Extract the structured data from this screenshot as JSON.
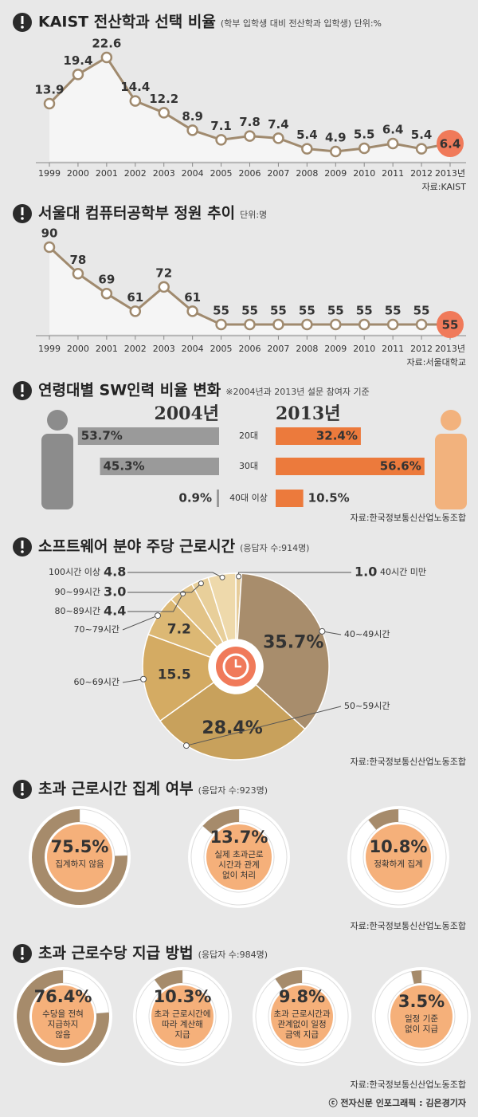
{
  "chart_data": [
    {
      "type": "line",
      "title": "KAIST 전산학과 선택 비율",
      "subtitle": "(학부 입학생 대비 전산학과 입학생) 단위:%",
      "categories": [
        "1999",
        "2000",
        "2001",
        "2002",
        "2003",
        "2004",
        "2005",
        "2006",
        "2007",
        "2008",
        "2009",
        "2010",
        "2011",
        "2012",
        "2013년"
      ],
      "values": [
        13.9,
        19.4,
        22.6,
        14.4,
        12.2,
        8.9,
        7.1,
        7.8,
        7.4,
        5.4,
        4.9,
        5.5,
        6.4,
        5.4,
        6.4
      ],
      "color": "#a08a6e",
      "highlight_color": "#f07a5a",
      "source": "자료:KAIST"
    },
    {
      "type": "line",
      "title": "서울대 컴퓨터공학부 정원 추이",
      "subtitle": "단위:명",
      "categories": [
        "1999",
        "2000",
        "2001",
        "2002",
        "2003",
        "2004",
        "2005",
        "2006",
        "2007",
        "2008",
        "2009",
        "2010",
        "2011",
        "2012",
        "2013년"
      ],
      "values": [
        90,
        78,
        69,
        61,
        72,
        61,
        55,
        55,
        55,
        55,
        55,
        55,
        55,
        55,
        55
      ],
      "color": "#a08a6e",
      "highlight_color": "#f07a5a",
      "source": "자료:서울대학교"
    },
    {
      "type": "hbar_pair",
      "title": "연령대별 SW인력 비율 변화",
      "subtitle": "※2004년과 2013년 설문 참여자 기준",
      "categories": [
        "20대",
        "30대",
        "40대 이상"
      ],
      "series": [
        {
          "name": "2004년",
          "color": "#9a9a9a",
          "values": [
            53.7,
            45.3,
            0.9
          ],
          "value_labels": [
            "53.7%",
            "45.3%",
            "0.9%"
          ]
        },
        {
          "name": "2013년",
          "color": "#ec7a3c",
          "values": [
            32.4,
            56.6,
            10.5
          ],
          "value_labels": [
            "32.4%",
            "56.6%",
            "10.5%"
          ]
        }
      ],
      "source": "자료:한국정보통신산업노동조합"
    },
    {
      "type": "donut",
      "title": "소프트웨어 분야 주당 근로시간",
      "subtitle": "(응답자 수:914명)",
      "categories": [
        "40시간 미만",
        "40~49시간",
        "50~59시간",
        "60~69시간",
        "70~79시간",
        "80~89시간",
        "90~99시간",
        "100시간 이상"
      ],
      "values": [
        1.0,
        35.7,
        28.4,
        15.5,
        7.2,
        4.4,
        3.0,
        4.8
      ],
      "value_labels": [
        "1.0",
        "35.7%",
        "28.4%",
        "15.5",
        "7.2",
        "4.4",
        "3.0",
        "4.8"
      ],
      "colors": [
        "#e6cc9a",
        "#a88d6c",
        "#c8a15c",
        "#d4ab63",
        "#dcb874",
        "#e2c387",
        "#e8cf9a",
        "#eed9ab"
      ],
      "source": "자료:한국정보통신산업노동조합"
    },
    {
      "type": "rings",
      "title": "초과 근로시간 집계 여부",
      "subtitle": "(응답자 수:923명)",
      "categories": [
        [
          "집계하지 않음"
        ],
        [
          "실제 초과근로",
          "시간과 관계",
          "없이 처리"
        ],
        [
          "정확하게 집계"
        ]
      ],
      "values": [
        75.5,
        13.7,
        10.8
      ],
      "value_labels": [
        "75.5%",
        "13.7%",
        "10.8%"
      ],
      "color": "#a68b6b",
      "source": "자료:한국정보통신산업노동조합"
    },
    {
      "type": "rings",
      "title": "초과 근로수당 지급 방법",
      "subtitle": "(응답자 수:984명)",
      "categories": [
        [
          "수당을 전혀",
          "지급하지",
          "않음"
        ],
        [
          "초과 근로시간에",
          "따라 계산해",
          "지급"
        ],
        [
          "초과 근로시간과",
          "관계없이 일정",
          "금액 지급"
        ],
        [
          "일정 기준",
          "없이 지급"
        ]
      ],
      "values": [
        76.4,
        10.3,
        9.8,
        3.5
      ],
      "value_labels": [
        "76.4%",
        "10.3%",
        "9.8%",
        "3.5%"
      ],
      "color": "#a68b6b",
      "source": "자료:한국정보통신산업노동조합"
    }
  ],
  "credit": "ⓒ 전자신문 인포그래픽 : 김은경기자"
}
